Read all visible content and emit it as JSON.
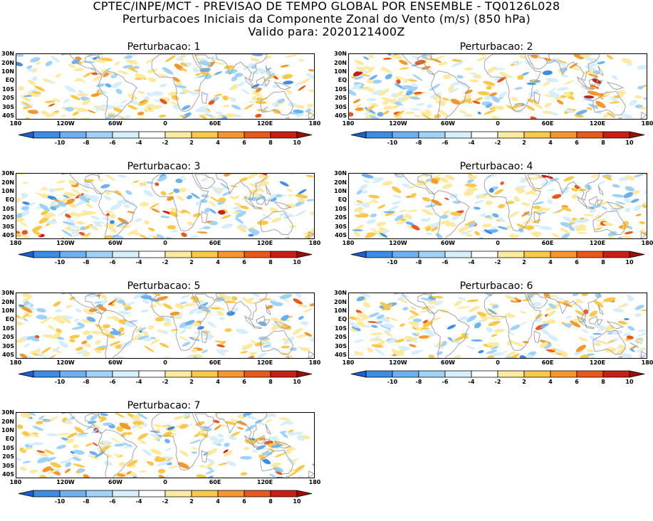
{
  "header": {
    "line1": "CPTEC/INPE/MCT - PREVISAO DE TEMPO GLOBAL POR ENSEMBLE - TQ0126L028",
    "line2": "Perturbacoes Iniciais da Componente Zonal do Vento (m/s) (850 hPa)",
    "line3": "Valido para: 2020121400Z"
  },
  "panels": [
    {
      "title": "Perturbacao: 1"
    },
    {
      "title": "Perturbacao: 2"
    },
    {
      "title": "Perturbacao: 3"
    },
    {
      "title": "Perturbacao: 4"
    },
    {
      "title": "Perturbacao: 5"
    },
    {
      "title": "Perturbacao: 6"
    },
    {
      "title": "Perturbacao: 7"
    }
  ],
  "lat_labels": [
    "30N",
    "20N",
    "10N",
    "EQ",
    "10S",
    "20S",
    "30S",
    "40S"
  ],
  "lon_labels": [
    "180",
    "120W",
    "60W",
    "0",
    "60E",
    "120E",
    "180"
  ],
  "colorbar": {
    "labels": [
      "-10",
      "-8",
      "-6",
      "-4",
      "-2",
      "2",
      "4",
      "6",
      "8",
      "10"
    ],
    "colors": [
      "#1e5fd0",
      "#3c8ce6",
      "#6cb0f0",
      "#a0d2f8",
      "#d6eefc",
      "#ffffff",
      "#fde9a0",
      "#fbc84a",
      "#f5962e",
      "#e8581c",
      "#c81e14",
      "#9a1008"
    ]
  }
}
